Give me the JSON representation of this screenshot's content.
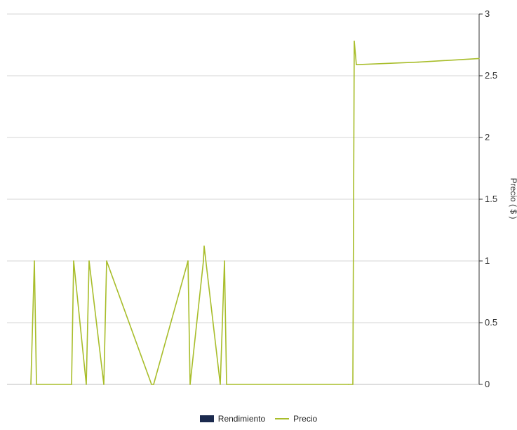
{
  "chart_data": {
    "type": "line",
    "title": "",
    "xlabel": "",
    "ylabel": "Precio  ( $ )",
    "y_axis_side": "right",
    "ylim": [
      0,
      3
    ],
    "yticks": [
      0,
      0.5,
      1,
      1.5,
      2,
      2.5,
      3
    ],
    "ytick_labels": [
      "0",
      "0.5",
      "1",
      "1.5",
      "2",
      "2.5",
      "3"
    ],
    "grid": true,
    "legend_position": "bottom-center",
    "series": [
      {
        "name": "Rendimiento",
        "kind": "bar",
        "color": "#1b2a4e",
        "values": []
      },
      {
        "name": "Precio",
        "kind": "line",
        "color": "#a8bd2a",
        "x": [
          1,
          2,
          3,
          4,
          5,
          6,
          7,
          8,
          9,
          10,
          11,
          12,
          13,
          14,
          15,
          16,
          17,
          18,
          19,
          20,
          21,
          22,
          23,
          24
        ],
        "values": [
          0,
          1,
          0,
          0,
          1,
          0,
          1,
          0,
          1,
          0,
          0,
          1,
          0,
          1,
          1.12,
          0,
          1,
          0,
          0,
          0,
          2.78,
          2.59,
          2.61,
          2.64
        ]
      }
    ]
  },
  "legend": {
    "items": [
      {
        "label": "Rendimiento",
        "color": "#1b2a4e",
        "style": "box"
      },
      {
        "label": "Precio",
        "color": "#a8bd2a",
        "style": "line"
      }
    ]
  }
}
